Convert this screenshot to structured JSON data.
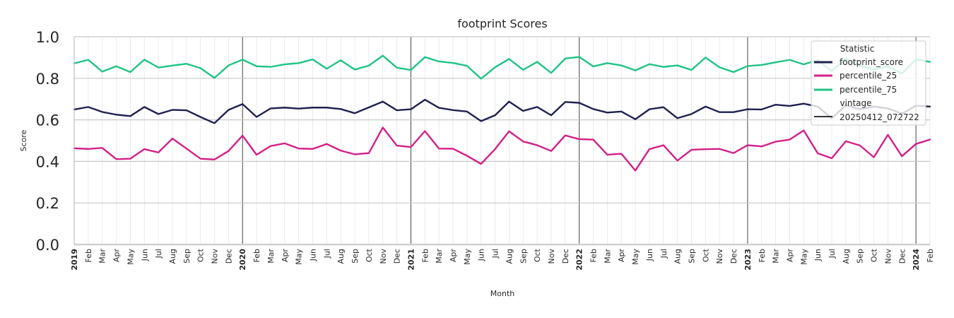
{
  "chart_data": {
    "type": "line",
    "title": "footprint Scores",
    "xlabel": "Month",
    "ylabel": "Score",
    "ylim": [
      0.0,
      1.0
    ],
    "yticks": [
      "0.0",
      "0.2",
      "0.4",
      "0.6",
      "0.8",
      "1.0"
    ],
    "x_start": "2019-01",
    "x_end": "2024-02",
    "x_ticks": [
      "2019",
      "Feb",
      "Mar",
      "Apr",
      "May",
      "Jun",
      "Jul",
      "Aug",
      "Sep",
      "Oct",
      "Nov",
      "Dec",
      "2020",
      "Feb",
      "Mar",
      "Apr",
      "May",
      "Jun",
      "Jul",
      "Aug",
      "Sep",
      "Oct",
      "Nov",
      "Dec",
      "2021",
      "Feb",
      "Mar",
      "Apr",
      "May",
      "Jun",
      "Jul",
      "Aug",
      "Sep",
      "Oct",
      "Nov",
      "Dec",
      "2022",
      "Feb",
      "Mar",
      "Apr",
      "May",
      "Jun",
      "Jul",
      "Aug",
      "Sep",
      "Oct",
      "Nov",
      "Dec",
      "2023",
      "Feb",
      "Mar",
      "Apr",
      "May",
      "Jun",
      "Jul",
      "Aug",
      "Sep",
      "Oct",
      "Nov",
      "Dec",
      "2024",
      "Feb"
    ],
    "grid": true,
    "legend_position": "top-right",
    "legend": {
      "title": "Statistic",
      "entries": [
        "footprint_score",
        "percentile_25",
        "percentile_75"
      ],
      "subtitle": "vintage",
      "vintage_entry": "20250412_072722"
    },
    "series": [
      {
        "name": "footprint_score",
        "color": "#1f2150",
        "values": [
          0.65,
          0.662,
          0.638,
          0.625,
          0.618,
          0.662,
          0.628,
          0.648,
          0.646,
          0.614,
          0.584,
          0.648,
          0.676,
          0.614,
          0.655,
          0.659,
          0.654,
          0.659,
          0.659,
          0.652,
          0.632,
          0.66,
          0.688,
          0.646,
          0.651,
          0.697,
          0.658,
          0.647,
          0.64,
          0.594,
          0.622,
          0.688,
          0.643,
          0.662,
          0.622,
          0.686,
          0.682,
          0.652,
          0.635,
          0.64,
          0.603,
          0.651,
          0.661,
          0.608,
          0.628,
          0.664,
          0.637,
          0.637,
          0.651,
          0.65,
          0.673,
          0.667,
          0.678,
          0.664,
          0.607,
          0.671,
          0.651,
          0.664,
          0.655,
          0.63,
          0.668,
          0.664
        ]
      },
      {
        "name": "percentile_25",
        "color": "#d41f88",
        "values": [
          0.463,
          0.46,
          0.465,
          0.411,
          0.413,
          0.459,
          0.443,
          0.51,
          0.462,
          0.413,
          0.409,
          0.45,
          0.524,
          0.432,
          0.474,
          0.487,
          0.462,
          0.46,
          0.484,
          0.452,
          0.434,
          0.44,
          0.563,
          0.476,
          0.469,
          0.546,
          0.462,
          0.461,
          0.427,
          0.388,
          0.459,
          0.545,
          0.496,
          0.478,
          0.45,
          0.525,
          0.507,
          0.505,
          0.432,
          0.437,
          0.356,
          0.459,
          0.478,
          0.404,
          0.456,
          0.459,
          0.46,
          0.44,
          0.478,
          0.472,
          0.495,
          0.505,
          0.549,
          0.439,
          0.415,
          0.497,
          0.477,
          0.42,
          0.528,
          0.425,
          0.484,
          0.505
        ]
      },
      {
        "name": "percentile_75",
        "color": "#1fc483",
        "values": [
          0.872,
          0.889,
          0.832,
          0.858,
          0.83,
          0.89,
          0.852,
          0.861,
          0.87,
          0.849,
          0.802,
          0.862,
          0.89,
          0.858,
          0.855,
          0.867,
          0.873,
          0.891,
          0.846,
          0.887,
          0.842,
          0.861,
          0.909,
          0.851,
          0.84,
          0.902,
          0.881,
          0.874,
          0.86,
          0.798,
          0.853,
          0.893,
          0.841,
          0.879,
          0.826,
          0.895,
          0.903,
          0.857,
          0.873,
          0.862,
          0.838,
          0.868,
          0.855,
          0.862,
          0.84,
          0.9,
          0.853,
          0.83,
          0.859,
          0.864,
          0.877,
          0.889,
          0.867,
          0.888,
          0.835,
          0.894,
          0.861,
          0.842,
          0.858,
          0.823,
          0.891,
          0.879
        ]
      }
    ]
  }
}
